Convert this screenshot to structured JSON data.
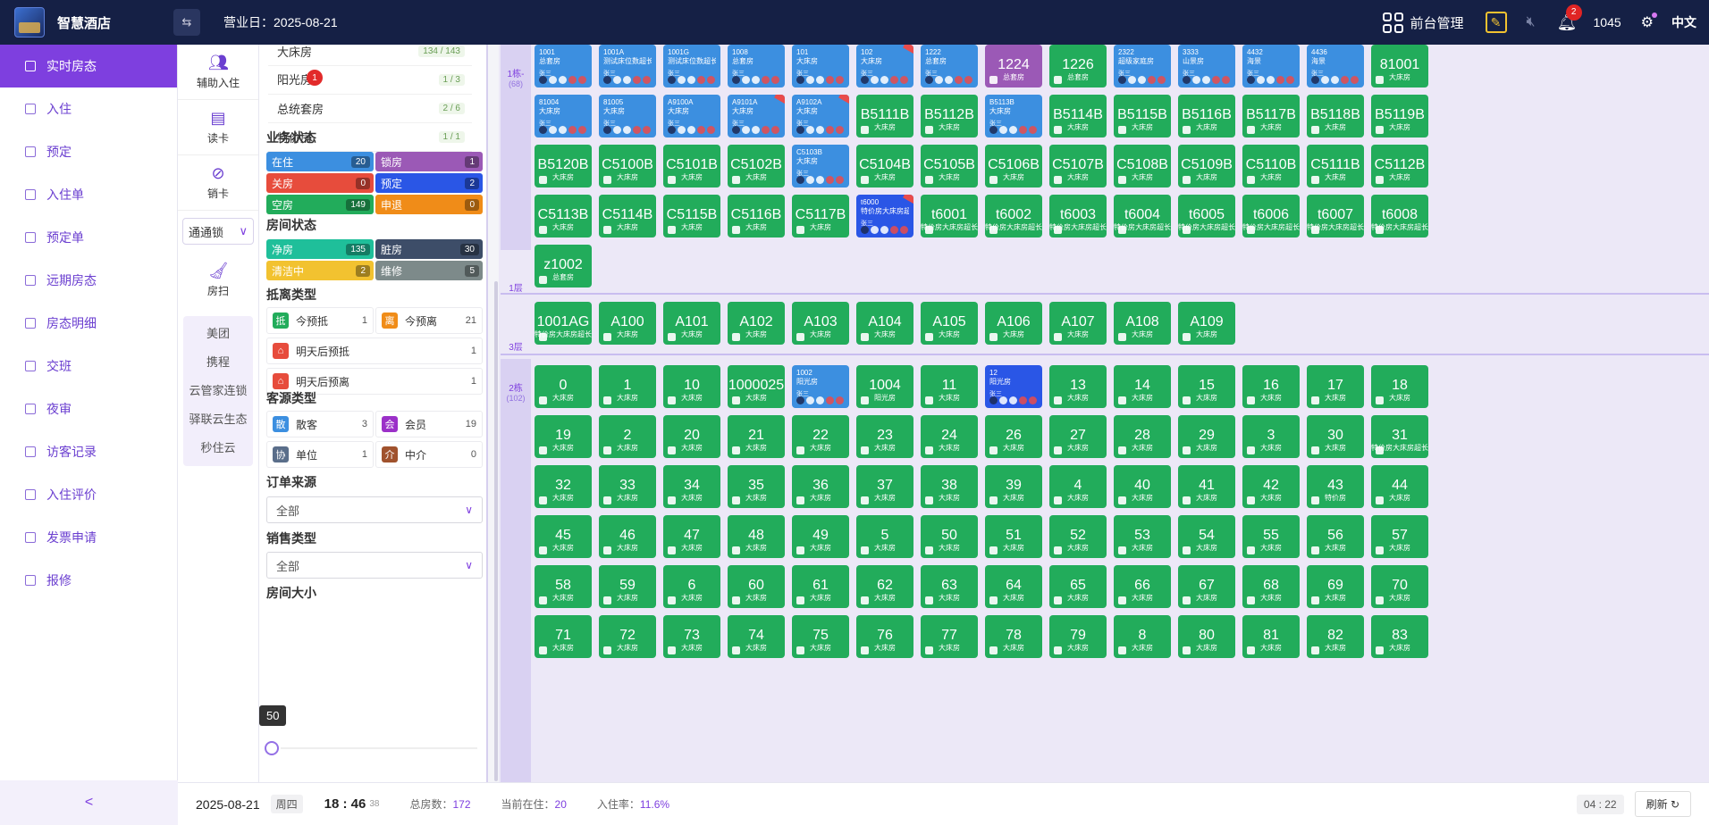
{
  "header": {
    "brand": "智慧酒店",
    "collapse_icon": "⇆",
    "business_day_label": "营业日：",
    "business_day": "2025-08-21",
    "front_desk_label": "前台管理",
    "notifications": "2",
    "count": "1045",
    "language": "中文"
  },
  "nav": {
    "items": [
      {
        "label": "实时房态",
        "icon": "grid-icon"
      },
      {
        "label": "入住",
        "icon": "checkin-icon"
      },
      {
        "label": "预定",
        "icon": "reserve-icon"
      },
      {
        "label": "入住单",
        "icon": "list-icon"
      },
      {
        "label": "预定单",
        "icon": "list-icon"
      },
      {
        "label": "远期房态",
        "icon": "calendar-icon"
      },
      {
        "label": "房态明细",
        "icon": "detail-icon"
      },
      {
        "label": "交班",
        "icon": "shift-icon"
      },
      {
        "label": "夜审",
        "icon": "night-icon"
      },
      {
        "label": "访客记录",
        "icon": "visitor-icon"
      },
      {
        "label": "入住评价",
        "icon": "comment-icon"
      },
      {
        "label": "发票申请",
        "icon": "invoice-icon"
      },
      {
        "label": "报修",
        "icon": "repair-icon"
      }
    ],
    "collapse": "<"
  },
  "tools": {
    "assist_checkin": "辅助入住",
    "read_card": "读卡",
    "cancel_card": "销卡",
    "lock_select": "通通锁",
    "housekeeping": "房扫",
    "ota": [
      "美团",
      "携程",
      "云管家连锁",
      "驿联云生态",
      "秒住云"
    ]
  },
  "filter": {
    "room_types": [
      {
        "name": "大床房",
        "count": "134 / 143"
      },
      {
        "name": "阳光房",
        "count": "1 / 3",
        "badge": "1"
      },
      {
        "name": "总统套房",
        "count": "2 / 6"
      },
      {
        "name": "特价房",
        "count": "1 / 1"
      }
    ],
    "biz_status_title": "业务状态",
    "biz_status": [
      {
        "label": "在住",
        "count": "20",
        "color": "#3c8fe0"
      },
      {
        "label": "锁房",
        "count": "1",
        "color": "#9b59b6"
      },
      {
        "label": "关房",
        "count": "0",
        "color": "#e74c3c"
      },
      {
        "label": "预定",
        "count": "2",
        "color": "#2a56e6"
      },
      {
        "label": "空房",
        "count": "149",
        "color": "#22ac5b"
      },
      {
        "label": "申退",
        "count": "0",
        "color": "#f08c18"
      }
    ],
    "room_status_title": "房间状态",
    "room_status": [
      {
        "label": "净房",
        "count": "135",
        "color": "#1fbf9a"
      },
      {
        "label": "脏房",
        "count": "30",
        "color": "#3d4d68"
      },
      {
        "label": "清洁中",
        "count": "2",
        "color": "#f2c230"
      },
      {
        "label": "维修",
        "count": "5",
        "color": "#7d8a8a"
      }
    ],
    "arrival_title": "抵离类型",
    "arrival": [
      {
        "icon": "抵",
        "label": "今预抵",
        "count": "1",
        "color": "#22ac5b"
      },
      {
        "icon": "离",
        "label": "今预离",
        "count": "21",
        "color": "#f08c18"
      },
      {
        "icon": "⌂",
        "label": "明天后预抵",
        "count": "1",
        "color": "#e74c3c"
      },
      {
        "icon": "⌂",
        "label": "明天后预离",
        "count": "1",
        "color": "#e74c3c"
      }
    ],
    "source_title": "客源类型",
    "source": [
      {
        "icon": "散",
        "label": "散客",
        "count": "3",
        "color": "#3c8fe0"
      },
      {
        "icon": "会",
        "label": "会员",
        "count": "19",
        "color": "#9b30c8"
      },
      {
        "icon": "协",
        "label": "单位",
        "count": "1",
        "color": "#5a6e8a"
      },
      {
        "icon": "介",
        "label": "中介",
        "count": "0",
        "color": "#a0522d"
      }
    ],
    "order_source_title": "订单来源",
    "order_source_value": "全部",
    "sales_type_title": "销售类型",
    "sales_type_value": "全部",
    "size_title": "房间大小",
    "size_value": "50"
  },
  "board": {
    "floors": [
      {
        "label": "1栋-",
        "count": "(68)"
      },
      {
        "label": "1层",
        "count": ""
      },
      {
        "label": "3层",
        "count": ""
      },
      {
        "label": "2栋",
        "count": "(102)"
      }
    ],
    "rooms_b1": [
      {
        "n": "1001",
        "t": "总套房",
        "s": "blue"
      },
      {
        "n": "1001A",
        "t": "测试床位数超长测",
        "s": "blue"
      },
      {
        "n": "1001G",
        "t": "测试床位数超长测",
        "s": "blue"
      },
      {
        "n": "1008",
        "t": "总套房",
        "s": "blue"
      },
      {
        "n": "101",
        "t": "大床房",
        "s": "blue"
      },
      {
        "n": "102",
        "t": "大床房",
        "s": "blue",
        "f": 1
      },
      {
        "n": "1222",
        "t": "总套房",
        "s": "blue"
      },
      {
        "n": "1224",
        "t": "总套房",
        "s": "purple"
      },
      {
        "n": "1226",
        "t": "总套房",
        "s": "green"
      },
      {
        "n": "2322",
        "t": "超级家庭房",
        "s": "blue"
      },
      {
        "n": "3333",
        "t": "山景房",
        "s": "blue"
      },
      {
        "n": "4432",
        "t": "海景",
        "s": "blue"
      },
      {
        "n": "4436",
        "t": "海景",
        "s": "blue"
      },
      {
        "n": "81001",
        "t": "大床房",
        "s": "green"
      },
      {
        "n": "81004",
        "t": "大床房",
        "s": "blue"
      },
      {
        "n": "81005",
        "t": "大床房",
        "s": "blue"
      },
      {
        "n": "A9100A",
        "t": "大床房",
        "s": "blue"
      },
      {
        "n": "A9101A",
        "t": "大床房",
        "s": "blue",
        "f": 1
      },
      {
        "n": "A9102A",
        "t": "大床房",
        "s": "blue",
        "f": 1
      },
      {
        "n": "B5111B",
        "t": "大床房",
        "s": "green"
      },
      {
        "n": "B5112B",
        "t": "大床房",
        "s": "green"
      },
      {
        "n": "B5113B",
        "t": "大床房",
        "s": "blue"
      },
      {
        "n": "B5114B",
        "t": "大床房",
        "s": "green"
      },
      {
        "n": "B5115B",
        "t": "大床房",
        "s": "green"
      },
      {
        "n": "B5116B",
        "t": "大床房",
        "s": "green"
      },
      {
        "n": "B5117B",
        "t": "大床房",
        "s": "green"
      },
      {
        "n": "B5118B",
        "t": "大床房",
        "s": "green"
      },
      {
        "n": "B5119B",
        "t": "大床房",
        "s": "green"
      },
      {
        "n": "B5120B",
        "t": "大床房",
        "s": "green"
      },
      {
        "n": "C5100B",
        "t": "大床房",
        "s": "green"
      },
      {
        "n": "C5101B",
        "t": "大床房",
        "s": "green"
      },
      {
        "n": "C5102B",
        "t": "大床房",
        "s": "green"
      },
      {
        "n": "C5103B",
        "t": "大床房",
        "s": "blue"
      },
      {
        "n": "C5104B",
        "t": "大床房",
        "s": "green"
      },
      {
        "n": "C5105B",
        "t": "大床房",
        "s": "green"
      },
      {
        "n": "C5106B",
        "t": "大床房",
        "s": "green"
      },
      {
        "n": "C5107B",
        "t": "大床房",
        "s": "green"
      },
      {
        "n": "C5108B",
        "t": "大床房",
        "s": "green"
      },
      {
        "n": "C5109B",
        "t": "大床房",
        "s": "green"
      },
      {
        "n": "C5110B",
        "t": "大床房",
        "s": "green"
      },
      {
        "n": "C5111B",
        "t": "大床房",
        "s": "green"
      },
      {
        "n": "C5112B",
        "t": "大床房",
        "s": "green"
      },
      {
        "n": "C5113B",
        "t": "大床房",
        "s": "green"
      },
      {
        "n": "C5114B",
        "t": "大床房",
        "s": "green"
      },
      {
        "n": "C5115B",
        "t": "大床房",
        "s": "green"
      },
      {
        "n": "C5116B",
        "t": "大床房",
        "s": "green"
      },
      {
        "n": "C5117B",
        "t": "大床房",
        "s": "green"
      },
      {
        "n": "t6000",
        "t": "特价房大床房超长",
        "s": "dblue",
        "f": 1
      },
      {
        "n": "t6001",
        "t": "特价房大床房超长",
        "s": "green"
      },
      {
        "n": "t6002",
        "t": "特价房大床房超长",
        "s": "green"
      },
      {
        "n": "t6003",
        "t": "特价房大床房超长",
        "s": "green"
      },
      {
        "n": "t6004",
        "t": "特价房大床房超长",
        "s": "green"
      },
      {
        "n": "t6005",
        "t": "特价房大床房超长",
        "s": "green"
      },
      {
        "n": "t6006",
        "t": "特价房大床房超长",
        "s": "green"
      },
      {
        "n": "t6007",
        "t": "特价房大床房超长",
        "s": "green"
      },
      {
        "n": "t6008",
        "t": "特价房大床房超长",
        "s": "green"
      },
      {
        "n": "z1002",
        "t": "总套房",
        "s": "green"
      }
    ],
    "rooms_f1": [
      {
        "n": "1001AG",
        "t": "特价房大床房超长",
        "s": "green"
      },
      {
        "n": "A100",
        "t": "大床房",
        "s": "green"
      },
      {
        "n": "A101",
        "t": "大床房",
        "s": "green"
      },
      {
        "n": "A102",
        "t": "大床房",
        "s": "green"
      },
      {
        "n": "A103",
        "t": "大床房",
        "s": "green"
      },
      {
        "n": "A104",
        "t": "大床房",
        "s": "green"
      },
      {
        "n": "A105",
        "t": "大床房",
        "s": "green"
      },
      {
        "n": "A106",
        "t": "大床房",
        "s": "green"
      },
      {
        "n": "A107",
        "t": "大床房",
        "s": "green"
      },
      {
        "n": "A108",
        "t": "大床房",
        "s": "green"
      },
      {
        "n": "A109",
        "t": "大床房",
        "s": "green"
      }
    ],
    "rooms_b2": [
      {
        "n": "0",
        "t": "大床房",
        "s": "green"
      },
      {
        "n": "1",
        "t": "大床房",
        "s": "green"
      },
      {
        "n": "10",
        "t": "大床房",
        "s": "green"
      },
      {
        "n": "1000025",
        "t": "大床房",
        "s": "green"
      },
      {
        "n": "1002",
        "t": "阳光房",
        "s": "blue"
      },
      {
        "n": "1004",
        "t": "阳光房",
        "s": "green"
      },
      {
        "n": "11",
        "t": "大床房",
        "s": "green"
      },
      {
        "n": "12",
        "t": "阳光房",
        "s": "dblue"
      },
      {
        "n": "13",
        "t": "大床房",
        "s": "green"
      },
      {
        "n": "14",
        "t": "大床房",
        "s": "green"
      },
      {
        "n": "15",
        "t": "大床房",
        "s": "green"
      },
      {
        "n": "16",
        "t": "大床房",
        "s": "green"
      },
      {
        "n": "17",
        "t": "大床房",
        "s": "green"
      },
      {
        "n": "18",
        "t": "大床房",
        "s": "green"
      },
      {
        "n": "19",
        "t": "大床房",
        "s": "green"
      },
      {
        "n": "2",
        "t": "大床房",
        "s": "green"
      },
      {
        "n": "20",
        "t": "大床房",
        "s": "green"
      },
      {
        "n": "21",
        "t": "大床房",
        "s": "green"
      },
      {
        "n": "22",
        "t": "大床房",
        "s": "green"
      },
      {
        "n": "23",
        "t": "大床房",
        "s": "green"
      },
      {
        "n": "24",
        "t": "大床房",
        "s": "green"
      },
      {
        "n": "26",
        "t": "大床房",
        "s": "green"
      },
      {
        "n": "27",
        "t": "大床房",
        "s": "green"
      },
      {
        "n": "28",
        "t": "大床房",
        "s": "green"
      },
      {
        "n": "29",
        "t": "大床房",
        "s": "green"
      },
      {
        "n": "3",
        "t": "大床房",
        "s": "green"
      },
      {
        "n": "30",
        "t": "大床房",
        "s": "green"
      },
      {
        "n": "31",
        "t": "特价房大床房超长",
        "s": "green"
      },
      {
        "n": "32",
        "t": "大床房",
        "s": "green"
      },
      {
        "n": "33",
        "t": "大床房",
        "s": "green"
      },
      {
        "n": "34",
        "t": "大床房",
        "s": "green"
      },
      {
        "n": "35",
        "t": "大床房",
        "s": "green"
      },
      {
        "n": "36",
        "t": "大床房",
        "s": "green"
      },
      {
        "n": "37",
        "t": "大床房",
        "s": "green"
      },
      {
        "n": "38",
        "t": "大床房",
        "s": "green"
      },
      {
        "n": "39",
        "t": "大床房",
        "s": "green"
      },
      {
        "n": "4",
        "t": "大床房",
        "s": "green"
      },
      {
        "n": "40",
        "t": "大床房",
        "s": "green"
      },
      {
        "n": "41",
        "t": "大床房",
        "s": "green"
      },
      {
        "n": "42",
        "t": "大床房",
        "s": "green"
      },
      {
        "n": "43",
        "t": "特价房",
        "s": "green"
      },
      {
        "n": "44",
        "t": "大床房",
        "s": "green"
      },
      {
        "n": "45",
        "t": "大床房",
        "s": "green"
      },
      {
        "n": "46",
        "t": "大床房",
        "s": "green"
      },
      {
        "n": "47",
        "t": "大床房",
        "s": "green"
      },
      {
        "n": "48",
        "t": "大床房",
        "s": "green"
      },
      {
        "n": "49",
        "t": "大床房",
        "s": "green"
      },
      {
        "n": "5",
        "t": "大床房",
        "s": "green"
      },
      {
        "n": "50",
        "t": "大床房",
        "s": "green"
      },
      {
        "n": "51",
        "t": "大床房",
        "s": "green"
      },
      {
        "n": "52",
        "t": "大床房",
        "s": "green"
      },
      {
        "n": "53",
        "t": "大床房",
        "s": "green"
      },
      {
        "n": "54",
        "t": "大床房",
        "s": "green"
      },
      {
        "n": "55",
        "t": "大床房",
        "s": "green"
      },
      {
        "n": "56",
        "t": "大床房",
        "s": "green"
      },
      {
        "n": "57",
        "t": "大床房",
        "s": "green"
      },
      {
        "n": "58",
        "t": "大床房",
        "s": "green"
      },
      {
        "n": "59",
        "t": "大床房",
        "s": "green"
      },
      {
        "n": "6",
        "t": "大床房",
        "s": "green"
      },
      {
        "n": "60",
        "t": "大床房",
        "s": "green"
      },
      {
        "n": "61",
        "t": "大床房",
        "s": "green"
      },
      {
        "n": "62",
        "t": "大床房",
        "s": "green"
      },
      {
        "n": "63",
        "t": "大床房",
        "s": "green"
      },
      {
        "n": "64",
        "t": "大床房",
        "s": "green"
      },
      {
        "n": "65",
        "t": "大床房",
        "s": "green"
      },
      {
        "n": "66",
        "t": "大床房",
        "s": "green"
      },
      {
        "n": "67",
        "t": "大床房",
        "s": "green"
      },
      {
        "n": "68",
        "t": "大床房",
        "s": "green"
      },
      {
        "n": "69",
        "t": "大床房",
        "s": "green"
      },
      {
        "n": "70",
        "t": "大床房",
        "s": "green"
      },
      {
        "n": "71",
        "t": "大床房",
        "s": "green"
      },
      {
        "n": "72",
        "t": "大床房",
        "s": "green"
      },
      {
        "n": "73",
        "t": "大床房",
        "s": "green"
      },
      {
        "n": "74",
        "t": "大床房",
        "s": "green"
      },
      {
        "n": "75",
        "t": "大床房",
        "s": "green"
      },
      {
        "n": "76",
        "t": "大床房",
        "s": "green"
      },
      {
        "n": "77",
        "t": "大床房",
        "s": "green"
      },
      {
        "n": "78",
        "t": "大床房",
        "s": "green"
      },
      {
        "n": "79",
        "t": "大床房",
        "s": "green"
      },
      {
        "n": "8",
        "t": "大床房",
        "s": "green"
      },
      {
        "n": "80",
        "t": "大床房",
        "s": "green"
      },
      {
        "n": "81",
        "t": "大床房",
        "s": "green"
      },
      {
        "n": "82",
        "t": "大床房",
        "s": "green"
      },
      {
        "n": "83",
        "t": "大床房",
        "s": "green"
      }
    ],
    "guest_label": "张三"
  },
  "status": {
    "date": "2025-08-21",
    "weekday": "周四",
    "time": "18 : 46",
    "seconds": "38",
    "total_label": "总房数：",
    "total": "172",
    "occupied_label": "当前在住：",
    "occupied": "20",
    "rate_label": "入住率：",
    "rate": "11.6%",
    "clock": "04 : 22",
    "refresh": "刷新 ↻"
  }
}
